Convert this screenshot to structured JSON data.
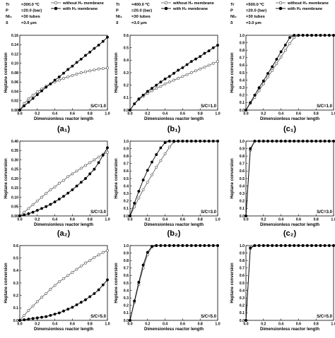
{
  "headers": [
    {
      "lines": [
        "Tr",
        "P",
        "Nt₂",
        "δ"
      ],
      "values": [
        "=300.0 ºC",
        "=20.0 (bar)",
        "=30 tubes",
        "=3.0 μm"
      ]
    },
    {
      "lines": [
        "Tr",
        "P",
        "Nt₂",
        "δ"
      ],
      "values": [
        "=400.0 ºC",
        "=20.0 (bar)",
        "=30 tubes",
        "=3.0 μm"
      ]
    },
    {
      "lines": [
        "Tr",
        "P",
        "Nt₂",
        "δ"
      ],
      "values": [
        "=500.0 ºC",
        "=20.0 (bar)",
        "=30 tubes",
        "=3.0 μm"
      ]
    }
  ],
  "legend": [
    "without H₂ membrane",
    "with H₂ membrane"
  ],
  "styles": {
    "line_color": "#000000",
    "open_marker_fill": "#ffffff",
    "filled_marker_fill": "#000000",
    "series_open_color": "#666666"
  },
  "chart_data": [
    {
      "type": "line",
      "panel_label": "(a₁)",
      "annotation": "S/C=1.0",
      "xlabel": "Dimensionless reactor length",
      "ylabel": "Heptane conversion",
      "xlim": [
        0,
        1
      ],
      "ylim": [
        0,
        0.16
      ],
      "yticks": [
        0,
        0.02,
        0.04,
        0.06,
        0.08,
        0.1,
        0.12,
        0.14,
        0.16
      ],
      "xticks": [
        0,
        0.2,
        0.4,
        0.6,
        0.8,
        1.0
      ],
      "x": [
        0,
        0.05,
        0.1,
        0.15,
        0.2,
        0.25,
        0.3,
        0.35,
        0.4,
        0.45,
        0.5,
        0.55,
        0.6,
        0.65,
        0.7,
        0.75,
        0.8,
        0.85,
        0.9,
        0.95,
        1.0
      ],
      "series": [
        {
          "name": "without H₂ membrane",
          "values": [
            0,
            0.014,
            0.024,
            0.032,
            0.039,
            0.045,
            0.051,
            0.056,
            0.06,
            0.064,
            0.068,
            0.071,
            0.074,
            0.077,
            0.08,
            0.082,
            0.084,
            0.086,
            0.088,
            0.089,
            0.09
          ]
        },
        {
          "name": "with H₂ membrane",
          "values": [
            0,
            0.009,
            0.017,
            0.025,
            0.033,
            0.041,
            0.049,
            0.056,
            0.064,
            0.071,
            0.079,
            0.087,
            0.094,
            0.102,
            0.109,
            0.117,
            0.124,
            0.132,
            0.139,
            0.147,
            0.156
          ]
        }
      ]
    },
    {
      "type": "line",
      "panel_label": "(b₁)",
      "annotation": "S/C=1.0",
      "xlabel": "Dimensionless reactor length",
      "ylabel": "Heptane conversion",
      "xlim": [
        0,
        1
      ],
      "ylim": [
        0,
        0.6
      ],
      "yticks": [
        0,
        0.1,
        0.2,
        0.3,
        0.4,
        0.5,
        0.6
      ],
      "xticks": [
        0,
        0.2,
        0.4,
        0.6,
        0.8,
        1.0
      ],
      "x": [
        0,
        0.05,
        0.1,
        0.15,
        0.2,
        0.25,
        0.3,
        0.35,
        0.4,
        0.45,
        0.5,
        0.55,
        0.6,
        0.65,
        0.7,
        0.75,
        0.8,
        0.85,
        0.9,
        0.95,
        1.0
      ],
      "series": [
        {
          "name": "without H₂ membrane",
          "values": [
            0,
            0.05,
            0.085,
            0.11,
            0.135,
            0.155,
            0.175,
            0.19,
            0.21,
            0.225,
            0.24,
            0.255,
            0.27,
            0.285,
            0.3,
            0.315,
            0.33,
            0.345,
            0.36,
            0.375,
            0.39
          ]
        },
        {
          "name": "with H₂ membrane",
          "values": [
            0,
            0.05,
            0.09,
            0.12,
            0.15,
            0.175,
            0.2,
            0.225,
            0.25,
            0.27,
            0.295,
            0.32,
            0.34,
            0.365,
            0.39,
            0.41,
            0.43,
            0.455,
            0.475,
            0.5,
            0.52
          ]
        }
      ]
    },
    {
      "type": "line",
      "panel_label": "(c₁)",
      "annotation": "S/C=1.0",
      "xlabel": "Dimensionless reactor length",
      "ylabel": "Heptane conversion",
      "xlim": [
        0,
        1
      ],
      "ylim": [
        0,
        1.0
      ],
      "yticks": [
        0,
        0.1,
        0.2,
        0.3,
        0.4,
        0.5,
        0.6,
        0.7,
        0.8,
        0.9,
        1.0
      ],
      "xticks": [
        0,
        0.2,
        0.4,
        0.6,
        0.8,
        1.0
      ],
      "x": [
        0,
        0.05,
        0.1,
        0.15,
        0.2,
        0.25,
        0.3,
        0.35,
        0.4,
        0.45,
        0.5,
        0.55,
        0.6,
        0.65,
        0.7,
        0.75,
        0.8,
        0.85,
        0.9,
        0.95,
        1.0
      ],
      "series": [
        {
          "name": "without H₂ membrane",
          "values": [
            0,
            0.09,
            0.17,
            0.26,
            0.35,
            0.44,
            0.53,
            0.62,
            0.71,
            0.8,
            0.89,
            0.97,
            1.0,
            1.0,
            1.0,
            1.0,
            1.0,
            1.0,
            1.0,
            1.0,
            1.0
          ]
        },
        {
          "name": "with H₂ membrane",
          "values": [
            0,
            0.1,
            0.2,
            0.3,
            0.39,
            0.49,
            0.58,
            0.68,
            0.78,
            0.87,
            0.97,
            1.0,
            1.0,
            1.0,
            1.0,
            1.0,
            1.0,
            1.0,
            1.0,
            1.0,
            1.0
          ]
        }
      ]
    },
    {
      "type": "line",
      "panel_label": "(a₂)",
      "annotation": "S/C=3.0",
      "xlabel": "Dimensionless reactor length",
      "ylabel": "Heptane conversion",
      "xlim": [
        0,
        1
      ],
      "ylim": [
        0,
        0.4
      ],
      "yticks": [
        0,
        0.05,
        0.1,
        0.15,
        0.2,
        0.25,
        0.3,
        0.35,
        0.4
      ],
      "xticks": [
        0,
        0.2,
        0.4,
        0.6,
        0.8,
        1.0
      ],
      "x": [
        0,
        0.05,
        0.1,
        0.15,
        0.2,
        0.25,
        0.3,
        0.35,
        0.4,
        0.45,
        0.5,
        0.55,
        0.6,
        0.65,
        0.7,
        0.75,
        0.8,
        0.85,
        0.9,
        0.95,
        1.0
      ],
      "series": [
        {
          "name": "without H₂ membrane",
          "values": [
            0,
            0.02,
            0.04,
            0.06,
            0.08,
            0.1,
            0.12,
            0.14,
            0.155,
            0.175,
            0.19,
            0.21,
            0.225,
            0.24,
            0.255,
            0.27,
            0.285,
            0.3,
            0.315,
            0.33,
            0.34
          ]
        },
        {
          "name": "with H₂ membrane",
          "values": [
            0,
            0.005,
            0.012,
            0.02,
            0.03,
            0.04,
            0.05,
            0.062,
            0.075,
            0.09,
            0.105,
            0.122,
            0.14,
            0.16,
            0.18,
            0.2,
            0.225,
            0.25,
            0.285,
            0.325,
            0.365
          ]
        }
      ]
    },
    {
      "type": "line",
      "panel_label": "(b₂)",
      "annotation": "S/C=3.0",
      "xlabel": "Dimensionless reactor length",
      "ylabel": "Heptane conversion",
      "xlim": [
        0,
        1
      ],
      "ylim": [
        0,
        1.0
      ],
      "yticks": [
        0,
        0.1,
        0.2,
        0.3,
        0.4,
        0.5,
        0.6,
        0.7,
        0.8,
        0.9,
        1.0
      ],
      "xticks": [
        0,
        0.2,
        0.4,
        0.6,
        0.8,
        1.0
      ],
      "x": [
        0,
        0.05,
        0.1,
        0.15,
        0.2,
        0.25,
        0.3,
        0.35,
        0.4,
        0.45,
        0.5,
        0.55,
        0.6,
        0.65,
        0.7,
        0.75,
        0.8,
        0.85,
        0.9,
        0.95,
        1.0
      ],
      "series": [
        {
          "name": "without H₂ membrane",
          "values": [
            0,
            0.12,
            0.24,
            0.35,
            0.45,
            0.55,
            0.65,
            0.74,
            0.83,
            0.92,
            0.99,
            1.0,
            1.0,
            1.0,
            1.0,
            1.0,
            1.0,
            1.0,
            1.0,
            1.0,
            1.0
          ]
        },
        {
          "name": "with H₂ membrane",
          "values": [
            0,
            0.17,
            0.33,
            0.48,
            0.61,
            0.72,
            0.82,
            0.91,
            0.98,
            1.0,
            1.0,
            1.0,
            1.0,
            1.0,
            1.0,
            1.0,
            1.0,
            1.0,
            1.0,
            1.0,
            1.0
          ]
        }
      ]
    },
    {
      "type": "line",
      "panel_label": "(c₂)",
      "annotation": "S/C=3.0",
      "xlabel": "Dimensionless reactor length",
      "ylabel": "Heptane conversion",
      "xlim": [
        0,
        1
      ],
      "ylim": [
        0,
        1.0
      ],
      "yticks": [
        0,
        0.1,
        0.2,
        0.3,
        0.4,
        0.5,
        0.6,
        0.7,
        0.8,
        0.9,
        1.0
      ],
      "xticks": [
        0,
        0.2,
        0.4,
        0.6,
        0.8,
        1.0
      ],
      "x": [
        0,
        0.05,
        0.1,
        0.15,
        0.2,
        0.25,
        0.3,
        0.35,
        0.4,
        0.45,
        0.5,
        0.55,
        0.6,
        0.65,
        0.7,
        0.75,
        0.8,
        0.85,
        0.9,
        0.95,
        1.0
      ],
      "series": [
        {
          "name": "without H₂ membrane",
          "values": [
            0,
            0.88,
            1.0,
            1.0,
            1.0,
            1.0,
            1.0,
            1.0,
            1.0,
            1.0,
            1.0,
            1.0,
            1.0,
            1.0,
            1.0,
            1.0,
            1.0,
            1.0,
            1.0,
            1.0,
            1.0
          ]
        },
        {
          "name": "with H₂ membrane",
          "values": [
            0,
            0.9,
            1.0,
            1.0,
            1.0,
            1.0,
            1.0,
            1.0,
            1.0,
            1.0,
            1.0,
            1.0,
            1.0,
            1.0,
            1.0,
            1.0,
            1.0,
            1.0,
            1.0,
            1.0,
            1.0
          ]
        }
      ]
    },
    {
      "type": "line",
      "panel_label": "",
      "annotation": "S/C=5.0",
      "xlabel": "Dimensionless reactor length",
      "ylabel": "Heptane conversion",
      "xlim": [
        0,
        1
      ],
      "ylim": [
        0,
        0.6
      ],
      "yticks": [
        0,
        0.1,
        0.2,
        0.3,
        0.4,
        0.5,
        0.6
      ],
      "xticks": [
        0,
        0.2,
        0.4,
        0.6,
        0.8,
        1.0
      ],
      "x": [
        0,
        0.05,
        0.1,
        0.15,
        0.2,
        0.25,
        0.3,
        0.35,
        0.4,
        0.45,
        0.5,
        0.55,
        0.6,
        0.65,
        0.7,
        0.75,
        0.8,
        0.85,
        0.9,
        0.95,
        1.0
      ],
      "series": [
        {
          "name": "without H₂ membrane",
          "values": [
            0,
            0.04,
            0.08,
            0.115,
            0.15,
            0.185,
            0.215,
            0.25,
            0.28,
            0.31,
            0.335,
            0.36,
            0.385,
            0.41,
            0.435,
            0.46,
            0.48,
            0.505,
            0.525,
            0.545,
            0.56
          ]
        },
        {
          "name": "with H₂ membrane",
          "values": [
            0,
            0.005,
            0.01,
            0.015,
            0.02,
            0.025,
            0.03,
            0.04,
            0.05,
            0.06,
            0.075,
            0.09,
            0.105,
            0.125,
            0.145,
            0.165,
            0.19,
            0.215,
            0.245,
            0.285,
            0.325
          ]
        }
      ]
    },
    {
      "type": "line",
      "panel_label": "",
      "annotation": "S/C=5.0",
      "xlabel": "Dimensionless reactor length",
      "ylabel": "Heptane conversion",
      "xlim": [
        0,
        1
      ],
      "ylim": [
        0,
        1.0
      ],
      "yticks": [
        0,
        0.1,
        0.2,
        0.3,
        0.4,
        0.5,
        0.6,
        0.7,
        0.8,
        0.9,
        1.0
      ],
      "xticks": [
        0,
        0.2,
        0.4,
        0.6,
        0.8,
        1.0
      ],
      "x": [
        0,
        0.05,
        0.1,
        0.15,
        0.2,
        0.25,
        0.3,
        0.35,
        0.4,
        0.45,
        0.5,
        0.55,
        0.6,
        0.65,
        0.7,
        0.75,
        0.8,
        0.85,
        0.9,
        0.95,
        1.0
      ],
      "series": [
        {
          "name": "without H₂ membrane",
          "values": [
            0,
            0.24,
            0.48,
            0.7,
            0.88,
            0.98,
            1.0,
            1.0,
            1.0,
            1.0,
            1.0,
            1.0,
            1.0,
            1.0,
            1.0,
            1.0,
            1.0,
            1.0,
            1.0,
            1.0,
            1.0
          ]
        },
        {
          "name": "with H₂ membrane",
          "values": [
            0,
            0.26,
            0.51,
            0.74,
            0.91,
            0.99,
            1.0,
            1.0,
            1.0,
            1.0,
            1.0,
            1.0,
            1.0,
            1.0,
            1.0,
            1.0,
            1.0,
            1.0,
            1.0,
            1.0,
            1.0
          ]
        }
      ]
    },
    {
      "type": "line",
      "panel_label": "",
      "annotation": "S/C=5.0",
      "xlabel": "Dimensionless reactor length",
      "ylabel": "Heptane conversion",
      "xlim": [
        0,
        1
      ],
      "ylim": [
        0,
        1.0
      ],
      "yticks": [
        0,
        0.1,
        0.2,
        0.3,
        0.4,
        0.5,
        0.6,
        0.7,
        0.8,
        0.9,
        1.0
      ],
      "xticks": [
        0,
        0.2,
        0.4,
        0.6,
        0.8,
        1.0
      ],
      "x": [
        0,
        0.05,
        0.1,
        0.15,
        0.2,
        0.25,
        0.3,
        0.35,
        0.4,
        0.45,
        0.5,
        0.55,
        0.6,
        0.65,
        0.7,
        0.75,
        0.8,
        0.85,
        0.9,
        0.95,
        1.0
      ],
      "series": [
        {
          "name": "without H₂ membrane",
          "values": [
            0,
            0.96,
            1.0,
            1.0,
            1.0,
            1.0,
            1.0,
            1.0,
            1.0,
            1.0,
            1.0,
            1.0,
            1.0,
            1.0,
            1.0,
            1.0,
            1.0,
            1.0,
            1.0,
            1.0,
            1.0
          ]
        },
        {
          "name": "with H₂ membrane",
          "values": [
            0,
            0.97,
            1.0,
            1.0,
            1.0,
            1.0,
            1.0,
            1.0,
            1.0,
            1.0,
            1.0,
            1.0,
            1.0,
            1.0,
            1.0,
            1.0,
            1.0,
            1.0,
            1.0,
            1.0,
            1.0
          ]
        }
      ]
    }
  ]
}
